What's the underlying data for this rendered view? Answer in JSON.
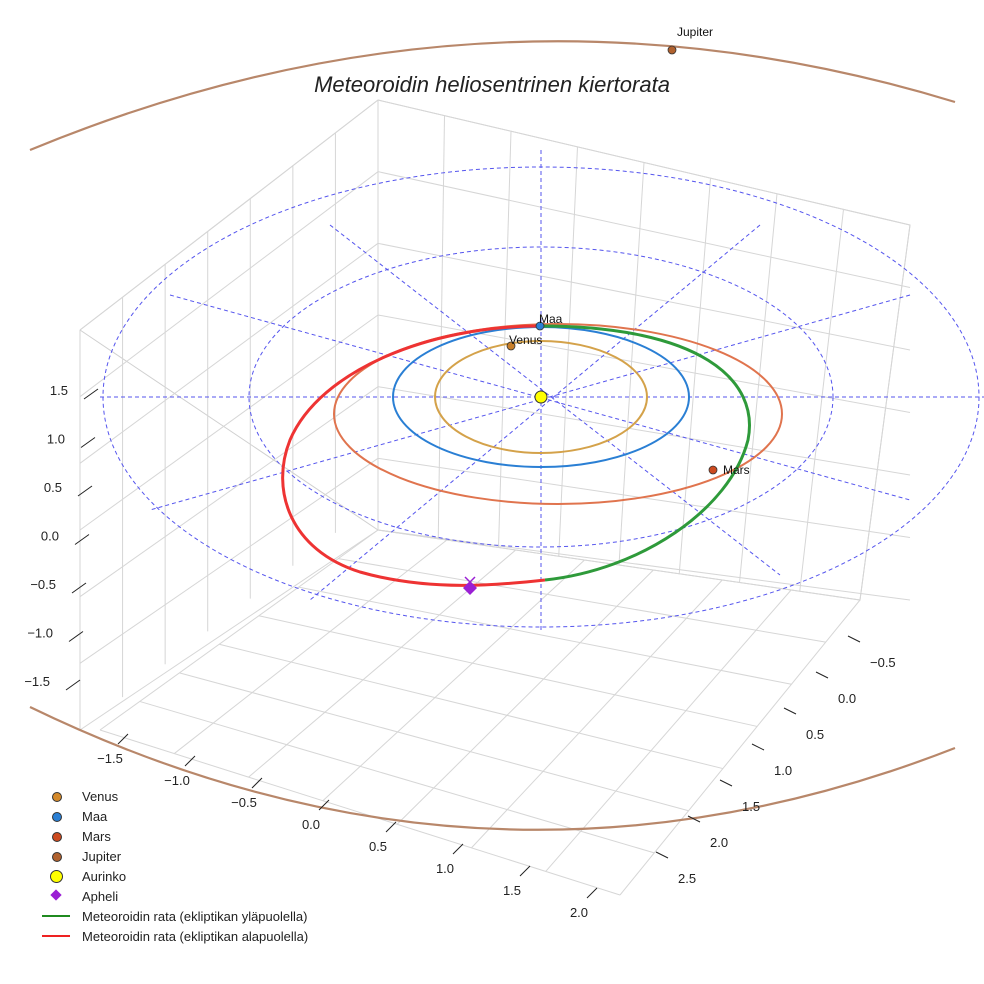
{
  "chart_data": {
    "type": "line3d",
    "title": "Meteoroidin heliosentrinen kiertorata",
    "z_ticks": [
      "1.5",
      "1.0",
      "0.5",
      "0.0",
      "−0.5",
      "−1.0",
      "−1.5"
    ],
    "x_ticks": [
      "−1.5",
      "−1.0",
      "−0.5",
      "0.0",
      "0.5",
      "1.0",
      "1.5",
      "2.0"
    ],
    "y_ticks": [
      "−0.5",
      "0.0",
      "0.5",
      "1.0",
      "1.5",
      "2.0",
      "2.5"
    ],
    "orbits": [
      {
        "name": "Venus",
        "radius_au": 0.72,
        "color": "#d4a24a"
      },
      {
        "name": "Maa",
        "radius_au": 1.0,
        "color": "#2a7fd4"
      },
      {
        "name": "Mars",
        "radius_au": 1.52,
        "color": "#e0744e"
      },
      {
        "name": "Jupiter",
        "radius_au": 5.2,
        "color": "#b8876a"
      }
    ],
    "planets": [
      {
        "name": "Venus",
        "label": "Venus",
        "color": "#c87f2a"
      },
      {
        "name": "Maa",
        "label": "Maa",
        "color": "#2a7fd4"
      },
      {
        "name": "Mars",
        "label": "Mars",
        "color": "#cc4a1f"
      },
      {
        "name": "Jupiter",
        "label": "Jupiter",
        "color": "#b0612e"
      }
    ],
    "meteoroid": {
      "perihelion_au": 1.0,
      "aphelion_au": 2.0,
      "above_color": "#2e9a3a",
      "below_color": "#ee3333"
    },
    "legend": [
      {
        "label": "Venus",
        "type": "dot",
        "color": "#d4892a"
      },
      {
        "label": "Maa",
        "type": "dot",
        "color": "#2a7fd4"
      },
      {
        "label": "Mars",
        "type": "dot",
        "color": "#cc4a1f"
      },
      {
        "label": "Jupiter",
        "type": "dot",
        "color": "#b0612e"
      },
      {
        "label": "Aurinko",
        "type": "bigdot",
        "color": "#ffff00"
      },
      {
        "label": "Apheli",
        "type": "diamond",
        "color": "#9a1fd4"
      },
      {
        "label": "Meteoroidin rata (ekliptikan yläpuolella)",
        "type": "line",
        "color": "#1f8a1f"
      },
      {
        "label": "Meteoroidin rata (ekliptikan alapuolella)",
        "type": "line",
        "color": "#ee2222"
      }
    ]
  }
}
